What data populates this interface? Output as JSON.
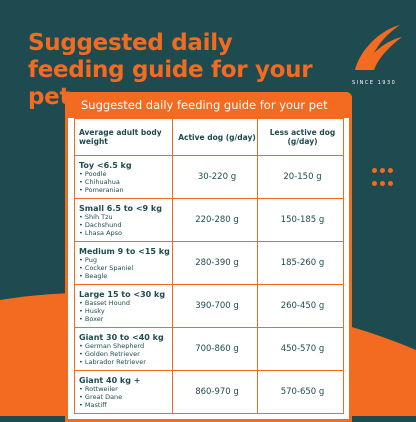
{
  "header": {
    "title": "Suggested daily feeding guide for your pet",
    "logo_text": "SINCE 1930"
  },
  "table": {
    "title": "Suggested daily feeding guide for your pet",
    "columns": [
      "Average adult body weight",
      "Active dog (g/day)",
      "Less active dog (g/day)"
    ],
    "rows": [
      {
        "group": "Toy <6.5 kg",
        "breeds": [
          "Poodle",
          "Chihuahua",
          "Pomeranian"
        ],
        "active": "30-220 g",
        "less_active": "20-150 g"
      },
      {
        "group": "Small 6.5 to <9 kg",
        "breeds": [
          "Shih Tzu",
          "Dachshund",
          "Lhasa Apso"
        ],
        "active": "220-280 g",
        "less_active": "150-185 g"
      },
      {
        "group": "Medium 9 to <15 kg",
        "breeds": [
          "Pug",
          "Cocker Spaniel",
          "Beagle"
        ],
        "active": "280-390 g",
        "less_active": "185-260 g"
      },
      {
        "group": "Large 15 to <30 kg",
        "breeds": [
          "Basset Hound",
          "Husky",
          "Boxer"
        ],
        "active": "390-700 g",
        "less_active": "260-450 g"
      },
      {
        "group": "Giant 30 to <40 kg",
        "breeds": [
          "German Shepherd",
          "Golden Retriever",
          "Labrador Retriever"
        ],
        "active": "700-860 g",
        "less_active": "450-570 g"
      },
      {
        "group": "Giant 40 kg +",
        "breeds": [
          "Rottweiler",
          "Great Dane",
          "Mastiff"
        ],
        "active": "860-970 g",
        "less_active": "570-650 g"
      }
    ]
  }
}
